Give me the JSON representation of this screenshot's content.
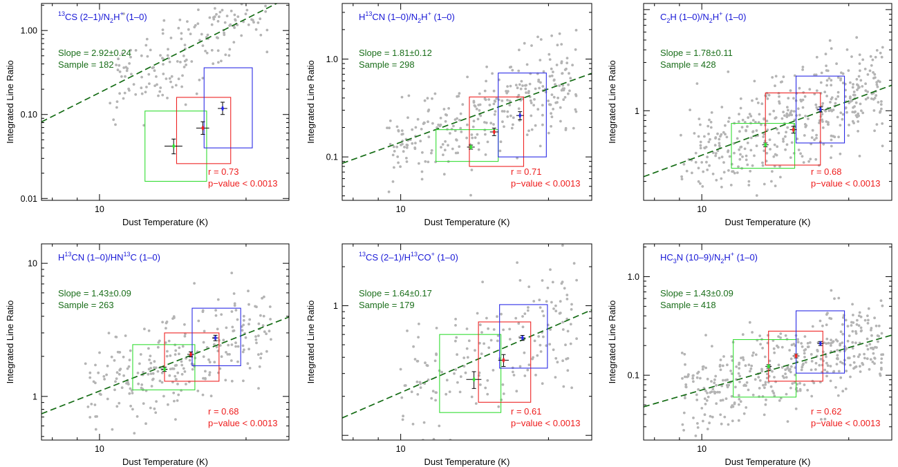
{
  "figure": {
    "xlabel": "Dust Temperature (K)",
    "ylabel": "Integrated Line Ratio"
  },
  "colors": {
    "scatter": "#b4b4b4",
    "fit_line": "#136b13",
    "stats_text": "#1a6e1a",
    "corr_text": "#ee1c1c",
    "title_text": "#1717d6",
    "box_low": "#33dd33",
    "box_mid": "#ee2222",
    "box_high": "#2a2ae6",
    "axis": "#000000"
  },
  "chart_data": [
    {
      "type": "scatter",
      "title_parts": [
        [
          "",
          "13",
          "CS (2–1)/N"
        ],
        [
          "",
          "2",
          "H"
        ],
        [
          "",
          "+",
          " (1–0)"
        ]
      ],
      "slope": "Slope = 2.92±0.24",
      "sample": "Sample = 182",
      "r": "r = 0.73",
      "pvalue": "p−value < 0.0013",
      "xscale": "log",
      "yscale": "log",
      "xlim": [
        7.6,
        24.5
      ],
      "ylim": [
        0.0095,
        2.1
      ],
      "xticks": [
        {
          "v": 10,
          "label": "10"
        }
      ],
      "yticks": [
        {
          "v": 0.01,
          "label": "0.01"
        },
        {
          "v": 0.1,
          "label": "0.10"
        },
        {
          "v": 1,
          "label": "1.00"
        }
      ],
      "fit": {
        "slope": 2.92,
        "intercept": -3.66
      },
      "boxes": [
        {
          "group": "low",
          "x": [
            12.4,
            16.6
          ],
          "y": [
            0.016,
            0.11
          ]
        },
        {
          "group": "mid",
          "x": [
            14.4,
            18.6
          ],
          "y": [
            0.026,
            0.16
          ]
        },
        {
          "group": "high",
          "x": [
            16.4,
            20.6
          ],
          "y": [
            0.04,
            0.36
          ]
        }
      ],
      "medians": [
        {
          "group": "low",
          "x": 14.2,
          "y": 0.042,
          "xerr": 0.6,
          "yerr": [
            0.034,
            0.051
          ]
        },
        {
          "group": "mid",
          "x": 16.3,
          "y": 0.069,
          "xerr": 0.5,
          "yerr": [
            0.058,
            0.082
          ]
        },
        {
          "group": "high",
          "x": 17.9,
          "y": 0.118,
          "xerr": 0.4,
          "yerr": [
            0.1,
            0.14
          ]
        }
      ],
      "scatter_points": {
        "n": 182,
        "x_range": [
          10.5,
          22.2
        ],
        "scatter_dex": 0.26,
        "seed": 11
      }
    },
    {
      "type": "scatter",
      "title_parts": [
        [
          "H",
          "13",
          "CN (1–0)/N"
        ],
        [
          "",
          "2",
          "H"
        ],
        [
          "",
          "+",
          " (1–0)"
        ]
      ],
      "slope": "Slope = 1.81±0.12",
      "sample": "Sample = 298",
      "r": "r = 0.71",
      "pvalue": "p−value < 0.0013",
      "xscale": "log",
      "yscale": "log",
      "xlim": [
        7.6,
        24.5
      ],
      "ylim": [
        0.036,
        3.7
      ],
      "xticks": [
        {
          "v": 10,
          "label": "10"
        }
      ],
      "yticks": [
        {
          "v": 0.1,
          "label": "0.1"
        },
        {
          "v": 1,
          "label": "1.0"
        }
      ],
      "fit": {
        "slope": 1.81,
        "intercept": -2.66
      },
      "boxes": [
        {
          "group": "low",
          "x": [
            11.8,
            15.8
          ],
          "y": [
            0.09,
            0.19
          ]
        },
        {
          "group": "mid",
          "x": [
            13.8,
            17.8
          ],
          "y": [
            0.08,
            0.41
          ]
        },
        {
          "group": "high",
          "x": [
            15.8,
            19.8
          ],
          "y": [
            0.1,
            0.72
          ]
        }
      ],
      "medians": [
        {
          "group": "low",
          "x": 13.9,
          "y": 0.126,
          "xerr": 0.25,
          "yerr": [
            0.12,
            0.132
          ]
        },
        {
          "group": "mid",
          "x": 15.5,
          "y": 0.18,
          "xerr": 0.3,
          "yerr": [
            0.165,
            0.197
          ]
        },
        {
          "group": "high",
          "x": 17.5,
          "y": 0.265,
          "xerr": 0.3,
          "yerr": [
            0.24,
            0.29
          ]
        }
      ],
      "scatter_points": {
        "n": 298,
        "x_range": [
          9.3,
          22.8
        ],
        "scatter_dex": 0.22,
        "seed": 23
      }
    },
    {
      "type": "scatter",
      "title_parts": [
        [
          "C",
          "2",
          "H (1–0)/N"
        ],
        [
          "",
          "2",
          "H"
        ],
        [
          "",
          "+",
          " (1–0)"
        ]
      ],
      "slope": "Slope = 1.78±0.11",
      "sample": "Sample = 428",
      "r": "r = 0.68",
      "pvalue": "p−value < 0.0013",
      "xscale": "log",
      "yscale": "log",
      "xlim": [
        7.6,
        24.5
      ],
      "ylim": [
        0.13,
        11.5
      ],
      "xticks": [
        {
          "v": 10,
          "label": "10"
        }
      ],
      "yticks": [
        {
          "v": 1,
          "label": "1"
        }
      ],
      "fit": {
        "slope": 1.78,
        "intercept": -2.22
      },
      "boxes": [
        {
          "group": "low",
          "x": [
            11.5,
            15.5
          ],
          "y": [
            0.27,
            0.75
          ]
        },
        {
          "group": "mid",
          "x": [
            13.5,
            17.5
          ],
          "y": [
            0.29,
            1.5
          ]
        },
        {
          "group": "high",
          "x": [
            15.6,
            19.6
          ],
          "y": [
            0.48,
            2.2
          ]
        }
      ],
      "medians": [
        {
          "group": "low",
          "x": 13.5,
          "y": 0.46,
          "xerr": 0.2,
          "yerr": [
            0.44,
            0.48
          ]
        },
        {
          "group": "mid",
          "x": 15.4,
          "y": 0.65,
          "xerr": 0.25,
          "yerr": [
            0.6,
            0.7
          ]
        },
        {
          "group": "high",
          "x": 17.5,
          "y": 1.03,
          "xerr": 0.25,
          "yerr": [
            0.97,
            1.09
          ]
        }
      ],
      "scatter_points": {
        "n": 428,
        "x_range": [
          9.0,
          23.5
        ],
        "scatter_dex": 0.24,
        "seed": 37
      }
    },
    {
      "type": "scatter",
      "title_parts": [
        [
          "H",
          "13",
          "CN (1–0)/HN"
        ],
        [
          "",
          "13",
          "C (1–0)"
        ]
      ],
      "slope": "Slope = 1.43±0.09",
      "sample": "Sample = 263",
      "r": "r = 0.68",
      "pvalue": "p−value < 0.0013",
      "xscale": "log",
      "yscale": "log",
      "xlim": [
        7.6,
        24.5
      ],
      "ylim": [
        0.47,
        14
      ],
      "xticks": [
        {
          "v": 10,
          "label": "10"
        }
      ],
      "yticks": [
        {
          "v": 1,
          "label": "1"
        },
        {
          "v": 10,
          "label": "10"
        }
      ],
      "fit": {
        "slope": 1.43,
        "intercept": -1.39
      },
      "boxes": [
        {
          "group": "low",
          "x": [
            11.7,
            15.7
          ],
          "y": [
            1.12,
            2.45
          ]
        },
        {
          "group": "mid",
          "x": [
            13.6,
            17.6
          ],
          "y": [
            1.3,
            3.0
          ]
        },
        {
          "group": "high",
          "x": [
            15.5,
            19.5
          ],
          "y": [
            1.7,
            4.6
          ]
        }
      ],
      "medians": [
        {
          "group": "low",
          "x": 13.6,
          "y": 1.6,
          "xerr": 0.2,
          "yerr": [
            1.54,
            1.66
          ]
        },
        {
          "group": "mid",
          "x": 15.4,
          "y": 2.07,
          "xerr": 0.25,
          "yerr": [
            1.98,
            2.16
          ]
        },
        {
          "group": "high",
          "x": 17.3,
          "y": 2.75,
          "xerr": 0.25,
          "yerr": [
            2.62,
            2.88
          ]
        }
      ],
      "scatter_points": {
        "n": 263,
        "x_range": [
          9.3,
          22.5
        ],
        "scatter_dex": 0.18,
        "seed": 51
      }
    },
    {
      "type": "scatter",
      "title_parts": [
        [
          "",
          "13",
          "CS (2–1)/H"
        ],
        [
          "",
          "13",
          "CO"
        ],
        [
          "",
          "+",
          " (1–0)"
        ]
      ],
      "slope": "Slope = 1.64±0.17",
      "sample": "Sample = 179",
      "r": "r = 0.61",
      "pvalue": "p−value < 0.0013",
      "xscale": "log",
      "yscale": "log",
      "xlim": [
        7.6,
        24.5
      ],
      "ylim": [
        0.092,
        3.0
      ],
      "xticks": [
        {
          "v": 10,
          "label": "10"
        }
      ],
      "yticks": [
        {
          "v": 1,
          "label": "1"
        }
      ],
      "fit": {
        "slope": 1.64,
        "intercept": -2.31
      },
      "boxes": [
        {
          "group": "low",
          "x": [
            12.0,
            16.0
          ],
          "y": [
            0.15,
            0.6
          ]
        },
        {
          "group": "mid",
          "x": [
            14.4,
            18.4
          ],
          "y": [
            0.18,
            0.75
          ]
        },
        {
          "group": "high",
          "x": [
            15.9,
            19.9
          ],
          "y": [
            0.33,
            1.02
          ]
        }
      ],
      "medians": [
        {
          "group": "low",
          "x": 14.1,
          "y": 0.27,
          "xerr": 0.5,
          "yerr": [
            0.23,
            0.31
          ]
        },
        {
          "group": "mid",
          "x": 16.2,
          "y": 0.38,
          "xerr": 0.4,
          "yerr": [
            0.34,
            0.42
          ]
        },
        {
          "group": "high",
          "x": 17.7,
          "y": 0.565,
          "xerr": 0.25,
          "yerr": [
            0.54,
            0.59
          ]
        }
      ],
      "scatter_points": {
        "n": 179,
        "x_range": [
          10.0,
          23.0
        ],
        "scatter_dex": 0.23,
        "seed": 67
      }
    },
    {
      "type": "scatter",
      "title_parts": [
        [
          "HC",
          "3",
          "N (10–9)/N"
        ],
        [
          "",
          "2",
          "H"
        ],
        [
          "",
          "+",
          " (1–0)"
        ]
      ],
      "slope": "Slope = 1.43±0.09",
      "sample": "Sample = 418",
      "r": "r = 0.62",
      "pvalue": "p−value < 0.0013",
      "xscale": "log",
      "yscale": "log",
      "xlim": [
        7.6,
        24.5
      ],
      "ylim": [
        0.022,
        2.15
      ],
      "xticks": [
        {
          "v": 10,
          "label": "10"
        }
      ],
      "yticks": [
        {
          "v": 0.1,
          "label": "0.1"
        },
        {
          "v": 1,
          "label": "1.0"
        }
      ],
      "fit": {
        "slope": 1.43,
        "intercept": -2.58
      },
      "boxes": [
        {
          "group": "low",
          "x": [
            11.6,
            15.6
          ],
          "y": [
            0.06,
            0.23
          ]
        },
        {
          "group": "mid",
          "x": [
            13.7,
            17.7
          ],
          "y": [
            0.087,
            0.28
          ]
        },
        {
          "group": "high",
          "x": [
            15.6,
            19.6
          ],
          "y": [
            0.105,
            0.45
          ]
        }
      ],
      "medians": [
        {
          "group": "low",
          "x": 13.7,
          "y": 0.123,
          "xerr": 0.2,
          "yerr": [
            0.118,
            0.128
          ]
        },
        {
          "group": "mid",
          "x": 15.6,
          "y": 0.157,
          "xerr": 0.25,
          "yerr": [
            0.15,
            0.164
          ]
        },
        {
          "group": "high",
          "x": 17.5,
          "y": 0.21,
          "xerr": 0.25,
          "yerr": [
            0.2,
            0.22
          ]
        }
      ],
      "scatter_points": {
        "n": 418,
        "x_range": [
          9.0,
          23.5
        ],
        "scatter_dex": 0.22,
        "seed": 83
      }
    }
  ]
}
